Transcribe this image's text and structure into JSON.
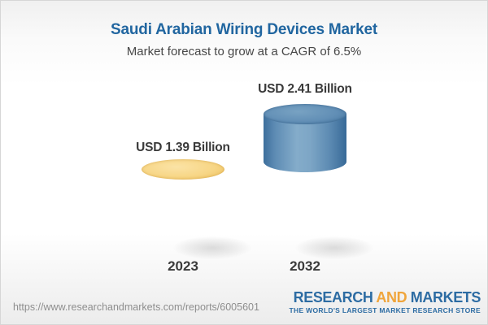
{
  "header": {
    "title": "Saudi Arabian Wiring Devices Market",
    "subtitle": "Market forecast to grow at a CAGR of 6.5%"
  },
  "chart_data": {
    "type": "bar",
    "title": "Saudi Arabian Wiring Devices Market",
    "subtitle": "Market forecast to grow at a CAGR of 6.5%",
    "unit": "USD Billion",
    "categories": [
      "2023",
      "2032"
    ],
    "values": [
      1.39,
      2.41
    ],
    "value_labels": [
      "USD 1.39 Billion",
      "USD 2.41 Billion"
    ],
    "cagr_percent": 6.5,
    "bar_style": "3d-cylinder",
    "colors": {
      "base_segment": "#f5cd78",
      "growth_segment": "#5d8bb3",
      "title_text": "#2166a0",
      "label_text": "#3a3a3a"
    },
    "notes": "2032 cylinder shows yellow base equal to 2023 value with blue growth segment stacked on top; no axes or gridlines shown"
  },
  "footer": {
    "report_url": "https://www.researchandmarkets.com/reports/6005601",
    "logo": {
      "word_research": "RESEARCH",
      "word_and": "AND",
      "word_markets": "MARKETS",
      "tagline": "THE WORLD'S LARGEST MARKET RESEARCH STORE",
      "blue": "#2d6ca3",
      "orange": "#f0a53b"
    }
  }
}
